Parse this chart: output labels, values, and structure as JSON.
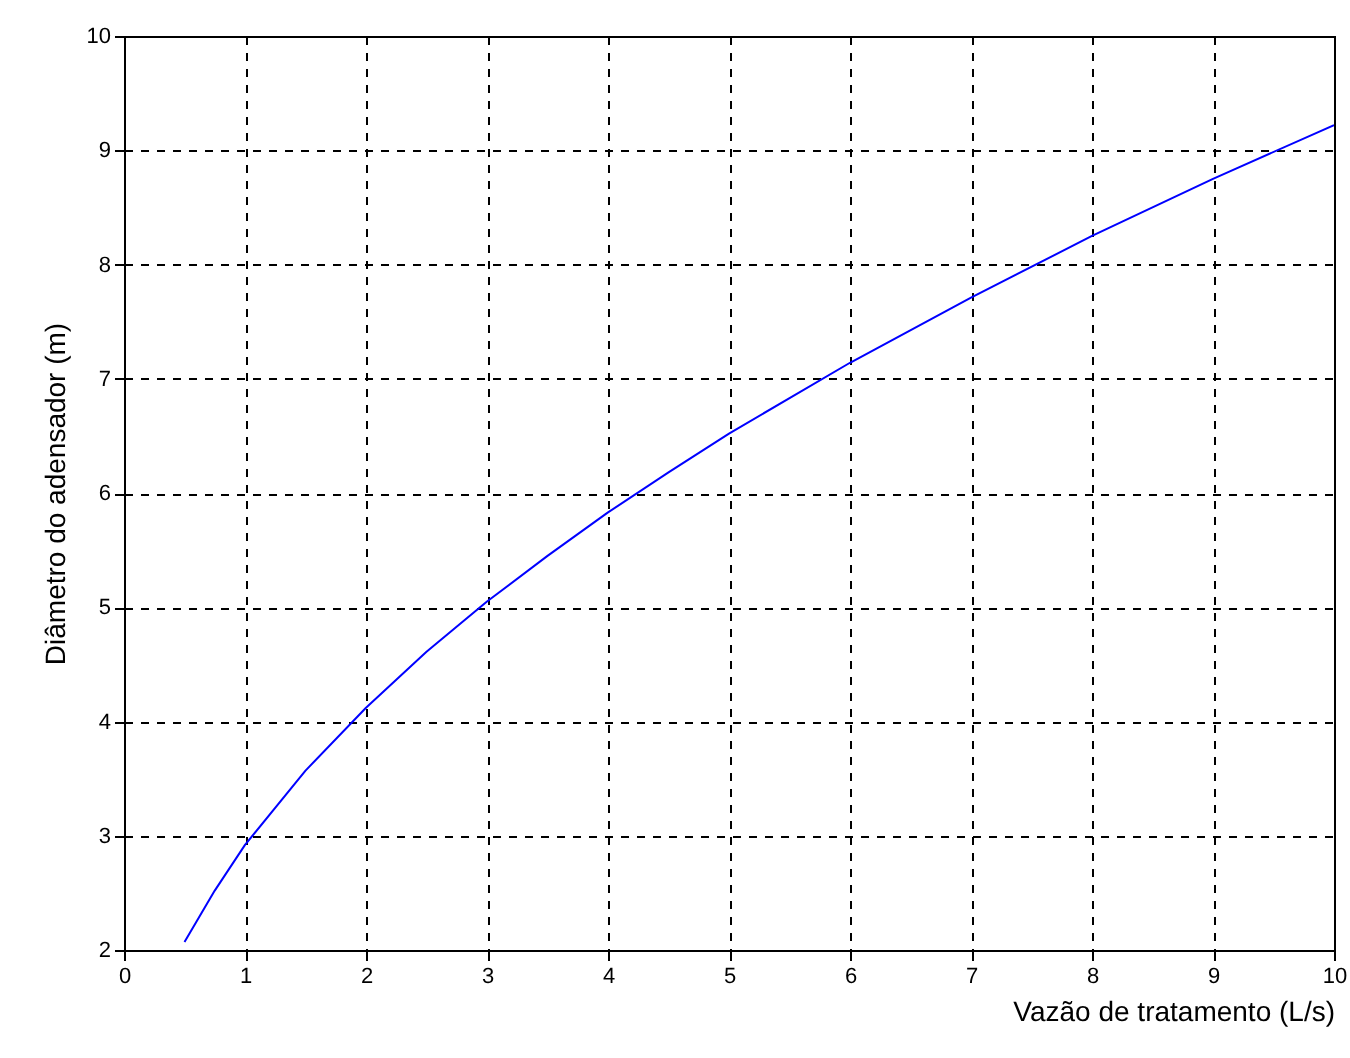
{
  "chart_data": {
    "type": "line",
    "xlabel": "Vazão de tratamento (L/s)",
    "ylabel": "Diâmetro do adensador (m)",
    "x": [
      0.5,
      0.75,
      1,
      1.5,
      2,
      2.5,
      3,
      3.5,
      4,
      4.5,
      5,
      6,
      7,
      8,
      9,
      10
    ],
    "series": [
      {
        "color": "#0000ff",
        "values": [
          2.07,
          2.52,
          2.92,
          3.57,
          4.12,
          4.61,
          5.05,
          5.45,
          5.83,
          6.18,
          6.52,
          7.14,
          7.71,
          8.25,
          8.75,
          9.22
        ]
      }
    ],
    "xlim": [
      0,
      10
    ],
    "ylim": [
      2,
      10
    ],
    "xticks": [
      0,
      1,
      2,
      3,
      4,
      5,
      6,
      7,
      8,
      9,
      10
    ],
    "yticks": [
      2,
      3,
      4,
      5,
      6,
      7,
      8,
      9,
      10
    ],
    "grid": true,
    "line_style": "solid",
    "marker": "none"
  }
}
